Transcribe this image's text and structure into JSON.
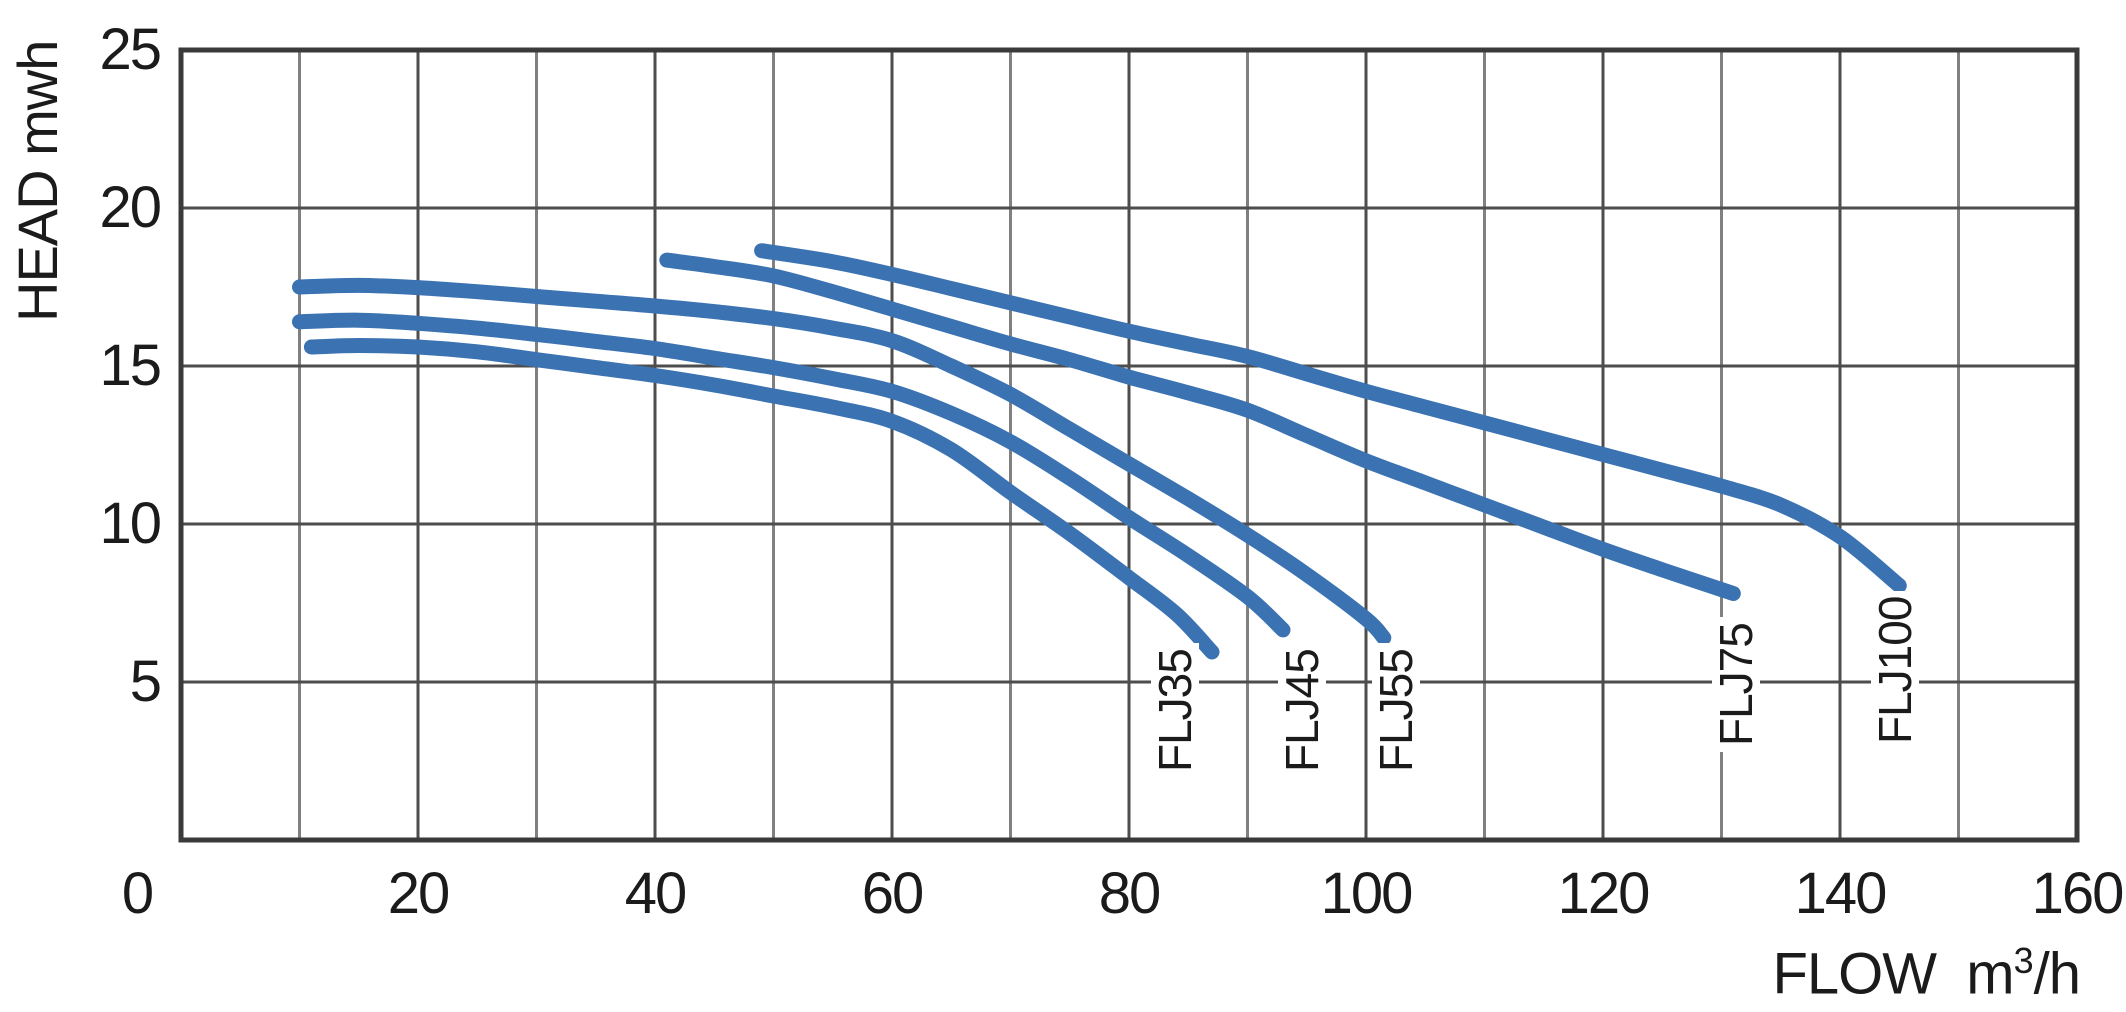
{
  "chart_data": {
    "type": "line",
    "title": "",
    "ylabel": "HEAD mwh",
    "xlabel": {
      "pre": "FLOW  m",
      "sup": "3",
      "post": "/h"
    },
    "xlim": [
      0,
      160
    ],
    "ylim": [
      0,
      25
    ],
    "x_ticks": [
      0,
      20,
      40,
      60,
      80,
      100,
      120,
      140,
      160
    ],
    "y_ticks": [
      5,
      10,
      15,
      20,
      25
    ],
    "x_grid_step": 10,
    "y_grid_step": 5,
    "grid": true,
    "legend_position": "labels-inside-plot",
    "curve_color": "#3a72b2",
    "series": [
      {
        "name": "FLJ35",
        "points": [
          [
            11,
            15.6
          ],
          [
            15,
            15.65
          ],
          [
            20,
            15.6
          ],
          [
            25,
            15.45
          ],
          [
            30,
            15.2
          ],
          [
            35,
            14.95
          ],
          [
            40,
            14.7
          ],
          [
            45,
            14.4
          ],
          [
            50,
            14.05
          ],
          [
            55,
            13.7
          ],
          [
            60,
            13.25
          ],
          [
            65,
            12.35
          ],
          [
            70,
            11.0
          ],
          [
            75,
            9.7
          ],
          [
            80,
            8.3
          ],
          [
            84,
            7.15
          ],
          [
            87,
            5.95
          ]
        ]
      },
      {
        "name": "FLJ45",
        "points": [
          [
            10,
            16.4
          ],
          [
            15,
            16.45
          ],
          [
            20,
            16.35
          ],
          [
            25,
            16.2
          ],
          [
            30,
            16.0
          ],
          [
            35,
            15.78
          ],
          [
            40,
            15.55
          ],
          [
            45,
            15.25
          ],
          [
            50,
            14.95
          ],
          [
            55,
            14.6
          ],
          [
            60,
            14.2
          ],
          [
            65,
            13.5
          ],
          [
            70,
            12.6
          ],
          [
            75,
            11.45
          ],
          [
            80,
            10.2
          ],
          [
            85,
            9.0
          ],
          [
            90,
            7.7
          ],
          [
            93,
            6.65
          ]
        ]
      },
      {
        "name": "FLJ55",
        "points": [
          [
            10,
            17.5
          ],
          [
            15,
            17.55
          ],
          [
            20,
            17.48
          ],
          [
            25,
            17.35
          ],
          [
            30,
            17.2
          ],
          [
            35,
            17.05
          ],
          [
            40,
            16.9
          ],
          [
            45,
            16.72
          ],
          [
            50,
            16.5
          ],
          [
            55,
            16.2
          ],
          [
            60,
            15.8
          ],
          [
            65,
            15.0
          ],
          [
            70,
            14.1
          ],
          [
            75,
            13.0
          ],
          [
            80,
            11.9
          ],
          [
            85,
            10.8
          ],
          [
            90,
            9.65
          ],
          [
            95,
            8.4
          ],
          [
            100,
            7.0
          ],
          [
            101.5,
            6.4
          ]
        ]
      },
      {
        "name": "FLJ75",
        "points": [
          [
            41,
            18.35
          ],
          [
            45,
            18.15
          ],
          [
            50,
            17.85
          ],
          [
            55,
            17.35
          ],
          [
            60,
            16.8
          ],
          [
            65,
            16.25
          ],
          [
            70,
            15.7
          ],
          [
            75,
            15.2
          ],
          [
            80,
            14.65
          ],
          [
            85,
            14.15
          ],
          [
            90,
            13.6
          ],
          [
            95,
            12.8
          ],
          [
            100,
            12.0
          ],
          [
            105,
            11.3
          ],
          [
            110,
            10.6
          ],
          [
            115,
            9.9
          ],
          [
            120,
            9.2
          ],
          [
            125,
            8.55
          ],
          [
            131,
            7.8
          ]
        ]
      },
      {
        "name": "FLJ100",
        "points": [
          [
            49,
            18.65
          ],
          [
            55,
            18.3
          ],
          [
            60,
            17.9
          ],
          [
            65,
            17.45
          ],
          [
            70,
            17.0
          ],
          [
            75,
            16.55
          ],
          [
            80,
            16.1
          ],
          [
            85,
            15.7
          ],
          [
            90,
            15.3
          ],
          [
            95,
            14.75
          ],
          [
            100,
            14.2
          ],
          [
            105,
            13.7
          ],
          [
            110,
            13.2
          ],
          [
            115,
            12.7
          ],
          [
            120,
            12.2
          ],
          [
            125,
            11.7
          ],
          [
            130,
            11.2
          ],
          [
            135,
            10.6
          ],
          [
            140,
            9.6
          ],
          [
            145,
            8.05
          ]
        ]
      }
    ],
    "colors": {
      "curve": "#3a72b2",
      "grid_major": "#4d4d4d",
      "grid_minor": "#808080",
      "border": "#3a3a3a",
      "text": "#1b1b1b"
    }
  }
}
